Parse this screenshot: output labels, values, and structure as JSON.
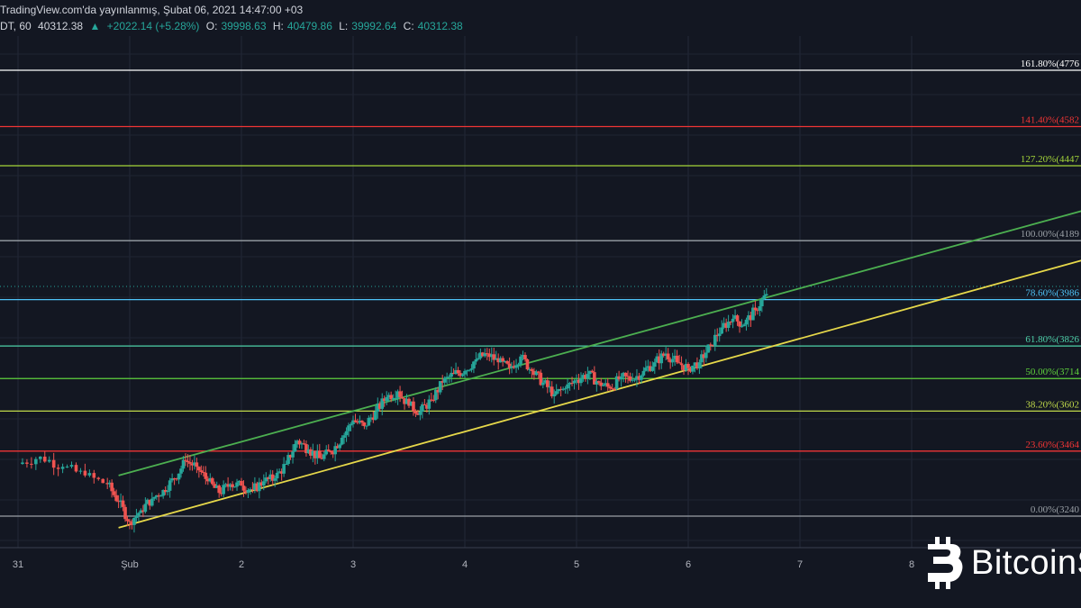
{
  "header": {
    "published": "TradingView.com'da yayınlanmış, Şubat 06, 2021 14:47:00 +03",
    "symbol": "DT, 60",
    "last": "40312.38",
    "change": "+2022.14 (+5.28%)",
    "o_label": "O:",
    "o_value": "39998.63",
    "h_label": "H:",
    "h_value": "40479.86",
    "l_label": "L:",
    "l_value": "39992.64",
    "c_label": "C:",
    "c_value": "40312.38"
  },
  "logo": {
    "text": "BitcoinS"
  },
  "colors": {
    "background": "#131722",
    "up": "#26a69a",
    "down": "#ef5350",
    "channel_top": "#4caf50",
    "channel_bottom": "#e6d84a"
  },
  "chart_data": {
    "type": "candlestick",
    "x_ticks": [
      "31",
      "Şub",
      "2",
      "3",
      "4",
      "5",
      "6",
      "7",
      "8"
    ],
    "y_range": [
      32000,
      48500
    ],
    "fib_levels": [
      {
        "label": "161.80%(4776",
        "value": 47760,
        "color": "#ffffff"
      },
      {
        "label": "141.40%(4582",
        "value": 45820,
        "color": "#ef3535"
      },
      {
        "label": "127.20%(4447",
        "value": 44470,
        "color": "#a5d63a"
      },
      {
        "label": "100.00%(4189",
        "value": 41890,
        "color": "#9aa0a6"
      },
      {
        "label": "78.60%(3986",
        "value": 39860,
        "color": "#4fc3f7"
      },
      {
        "label": "61.80%(3826",
        "value": 38260,
        "color": "#4dd0a8"
      },
      {
        "label": "50.00%(3714",
        "value": 37140,
        "color": "#5ed13c"
      },
      {
        "label": "38.20%(3602",
        "value": 36020,
        "color": "#c0d94a"
      },
      {
        "label": "23.60%(3464",
        "value": 34640,
        "color": "#ef3535"
      },
      {
        "label": "0.00%(3240",
        "value": 32400,
        "color": "#9aa0a6"
      }
    ],
    "channel": [
      {
        "name": "upper",
        "from": [
          0.9,
          33800
        ],
        "to": [
          9.7,
          43100
        ],
        "color": "#4caf50"
      },
      {
        "name": "lower",
        "from": [
          0.9,
          32000
        ],
        "to": [
          9.7,
          41400
        ],
        "color": "#e6d84a"
      }
    ],
    "close_series": [
      [
        0.0,
        34200
      ],
      [
        0.2,
        34450
      ],
      [
        0.4,
        34100
      ],
      [
        0.6,
        33800
      ],
      [
        0.8,
        33500
      ],
      [
        0.9,
        32900
      ],
      [
        1.0,
        32200
      ],
      [
        1.1,
        32600
      ],
      [
        1.2,
        33000
      ],
      [
        1.3,
        33300
      ],
      [
        1.4,
        33700
      ],
      [
        1.5,
        34300
      ],
      [
        1.6,
        34100
      ],
      [
        1.7,
        33600
      ],
      [
        1.8,
        33200
      ],
      [
        1.9,
        33500
      ],
      [
        2.0,
        33450
      ],
      [
        2.1,
        33300
      ],
      [
        2.2,
        33600
      ],
      [
        2.3,
        33700
      ],
      [
        2.4,
        34200
      ],
      [
        2.5,
        35000
      ],
      [
        2.6,
        34700
      ],
      [
        2.7,
        34400
      ],
      [
        2.8,
        34600
      ],
      [
        2.9,
        35100
      ],
      [
        3.0,
        35700
      ],
      [
        3.1,
        35500
      ],
      [
        3.2,
        36000
      ],
      [
        3.3,
        36500
      ],
      [
        3.4,
        36700
      ],
      [
        3.5,
        36200
      ],
      [
        3.6,
        36000
      ],
      [
        3.7,
        36400
      ],
      [
        3.8,
        37000
      ],
      [
        3.9,
        37300
      ],
      [
        4.0,
        37400
      ],
      [
        4.1,
        37800
      ],
      [
        4.2,
        38000
      ],
      [
        4.3,
        37700
      ],
      [
        4.4,
        37500
      ],
      [
        4.5,
        37900
      ],
      [
        4.6,
        37400
      ],
      [
        4.7,
        37000
      ],
      [
        4.8,
        36600
      ],
      [
        4.9,
        36800
      ],
      [
        5.0,
        37100
      ],
      [
        5.1,
        37300
      ],
      [
        5.2,
        37000
      ],
      [
        5.3,
        36800
      ],
      [
        5.4,
        37200
      ],
      [
        5.5,
        37100
      ],
      [
        5.6,
        37400
      ],
      [
        5.7,
        37700
      ],
      [
        5.8,
        38000
      ],
      [
        5.9,
        37700
      ],
      [
        6.0,
        37500
      ],
      [
        6.1,
        37700
      ],
      [
        6.2,
        38300
      ],
      [
        6.3,
        38900
      ],
      [
        6.4,
        39200
      ],
      [
        6.5,
        39000
      ],
      [
        6.6,
        39500
      ],
      [
        6.7,
        40050
      ]
    ],
    "current_price": 40312.38
  }
}
